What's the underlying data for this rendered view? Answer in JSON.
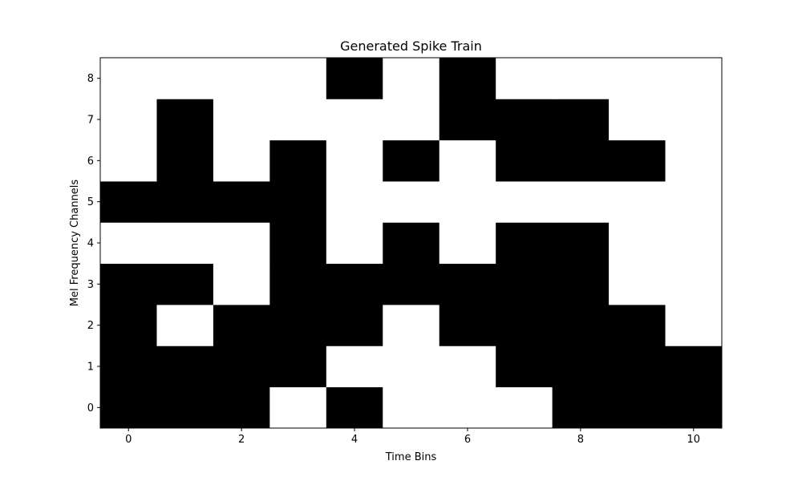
{
  "chart_data": {
    "type": "heatmap",
    "title": "Generated Spike Train",
    "xlabel": "Time Bins",
    "ylabel": "Mel Frequency Channels",
    "x": [
      0,
      1,
      2,
      3,
      4,
      5,
      6,
      7,
      8,
      9,
      10
    ],
    "y": [
      0,
      1,
      2,
      3,
      4,
      5,
      6,
      7,
      8
    ],
    "xticks": [
      "0",
      "2",
      "4",
      "6",
      "8",
      "10"
    ],
    "xtick_values": [
      0,
      2,
      4,
      6,
      8,
      10
    ],
    "yticks": [
      "0",
      "1",
      "2",
      "3",
      "4",
      "5",
      "6",
      "7",
      "8"
    ],
    "ytick_values": [
      0,
      1,
      2,
      3,
      4,
      5,
      6,
      7,
      8
    ],
    "xlim": [
      -0.5,
      10.5
    ],
    "ylim": [
      -0.5,
      8.5
    ],
    "grid": false,
    "colormap": {
      "1": "#000000",
      "0": "#ffffff"
    },
    "values": [
      [
        1,
        1,
        1,
        0,
        1,
        0,
        0,
        0,
        1,
        1,
        1
      ],
      [
        1,
        1,
        1,
        1,
        0,
        0,
        0,
        1,
        1,
        1,
        1
      ],
      [
        1,
        0,
        1,
        1,
        1,
        0,
        1,
        1,
        1,
        1,
        0
      ],
      [
        1,
        1,
        0,
        1,
        1,
        1,
        1,
        1,
        1,
        0,
        0
      ],
      [
        0,
        0,
        0,
        1,
        0,
        1,
        0,
        1,
        1,
        0,
        0
      ],
      [
        1,
        1,
        1,
        1,
        0,
        0,
        0,
        0,
        0,
        0,
        0
      ],
      [
        0,
        1,
        0,
        1,
        0,
        1,
        0,
        1,
        1,
        1,
        0
      ],
      [
        0,
        1,
        0,
        0,
        0,
        0,
        1,
        1,
        1,
        0,
        0
      ],
      [
        0,
        0,
        0,
        0,
        1,
        0,
        1,
        0,
        0,
        0,
        0
      ]
    ]
  }
}
